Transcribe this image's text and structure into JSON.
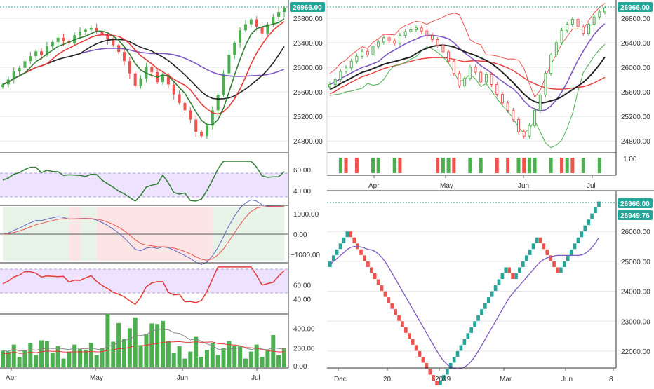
{
  "colors": {
    "up": "#4caf50",
    "down": "#ef5350",
    "sma_fast": "#2e7d32",
    "sma_mid": "#e53935",
    "sma_slow": "#222222",
    "sma_long": "#7e57c2",
    "band_fill": "#e8dcff",
    "bg_green": "#e8f3e8",
    "bg_red": "#fde5e5",
    "tag_bg": "#26a69a",
    "renko_up": "#26a69a",
    "renko_down": "#ef5350",
    "grid": "#e6e6e6",
    "axis": "#666666"
  },
  "left_panel": {
    "price_axis": [
      "26800.00",
      "26400.00",
      "26000.00",
      "25600.00",
      "25200.00",
      "24800.00"
    ],
    "last_price_tag": "26966.00",
    "rsi_axis": [
      "60.00",
      "40.00"
    ],
    "macd_axis": [
      "1000.00",
      "0.00",
      "−1000.00"
    ],
    "stoch_axis": [
      "60.00",
      "40.00"
    ],
    "volume_axis": [
      "400.00",
      "200.00",
      "0.00"
    ],
    "time_axis": [
      "Apr",
      "May",
      "Jun",
      "Jul"
    ]
  },
  "right_top_panel": {
    "price_axis": [
      "26800.00",
      "26400.00",
      "26000.00",
      "25600.00",
      "25200.00",
      "24800.00"
    ],
    "last_price_tag": "26966.00",
    "signal_axis": [
      "1.00"
    ],
    "time_axis": [
      "Apr",
      "May",
      "Jun",
      "Jul"
    ]
  },
  "right_bottom_panel": {
    "price_axis": [
      "26000.00",
      "25000.00",
      "24000.00",
      "23000.00",
      "22000.00"
    ],
    "last_price_tag": "26966.00",
    "second_price_tag": "26949.76",
    "time_axis": [
      "Dec",
      "20",
      "2019",
      "Mar",
      "Jun",
      "8"
    ]
  },
  "chart_data": [
    {
      "type": "candlestick",
      "panel": "left-price",
      "x_range": [
        "Mar 25",
        "Jul 5"
      ],
      "ylim": [
        24700,
        26980
      ],
      "ohlc_closes": [
        25720,
        25800,
        25930,
        25990,
        26100,
        26180,
        26260,
        26200,
        26340,
        26410,
        26480,
        26430,
        26390,
        26520,
        26580,
        26610,
        26640,
        26590,
        26520,
        26450,
        26360,
        26250,
        26100,
        25900,
        25700,
        25820,
        26000,
        25920,
        25760,
        25880,
        25720,
        25560,
        25420,
        25300,
        25150,
        24950,
        24880,
        25050,
        25300,
        25550,
        25900,
        26200,
        26400,
        26600,
        26700,
        26780,
        26660,
        26550,
        26700,
        26820,
        26900,
        26966
      ],
      "indicators": [
        "SMA fast",
        "SMA mid",
        "SMA slow",
        "SMA long"
      ]
    },
    {
      "type": "line",
      "panel": "left-rsi",
      "ylim": [
        20,
        90
      ],
      "band": [
        33,
        55
      ]
    },
    {
      "type": "line",
      "panel": "left-macd",
      "ylim": [
        -1300,
        1300
      ],
      "series": [
        "MACD",
        "Signal"
      ]
    },
    {
      "type": "line",
      "panel": "left-stoch",
      "ylim": [
        20,
        90
      ],
      "band": [
        45,
        68
      ]
    },
    {
      "type": "bar",
      "panel": "left-volume",
      "ylim": [
        0,
        520
      ]
    },
    {
      "type": "candlestick",
      "panel": "right-top-price",
      "x_range": [
        "Mar 25",
        "Jul 5"
      ],
      "ylim": [
        24700,
        26980
      ],
      "indicators": [
        "Bollinger upper",
        "Bollinger lower",
        "SMA mid",
        "SMA slow"
      ]
    },
    {
      "type": "bar",
      "panel": "right-top-signals",
      "ylim": [
        0,
        1.2
      ]
    },
    {
      "type": "renko",
      "panel": "right-bottom",
      "x_range": [
        "Nov",
        "Jul 8"
      ],
      "ylim": [
        21600,
        27200
      ],
      "box_size": 200,
      "moves": [
        2,
        4,
        -12,
        -8,
        -6,
        10,
        8,
        2,
        -2,
        4,
        3,
        -4,
        -2,
        4,
        8
      ],
      "start": 24800
    }
  ]
}
